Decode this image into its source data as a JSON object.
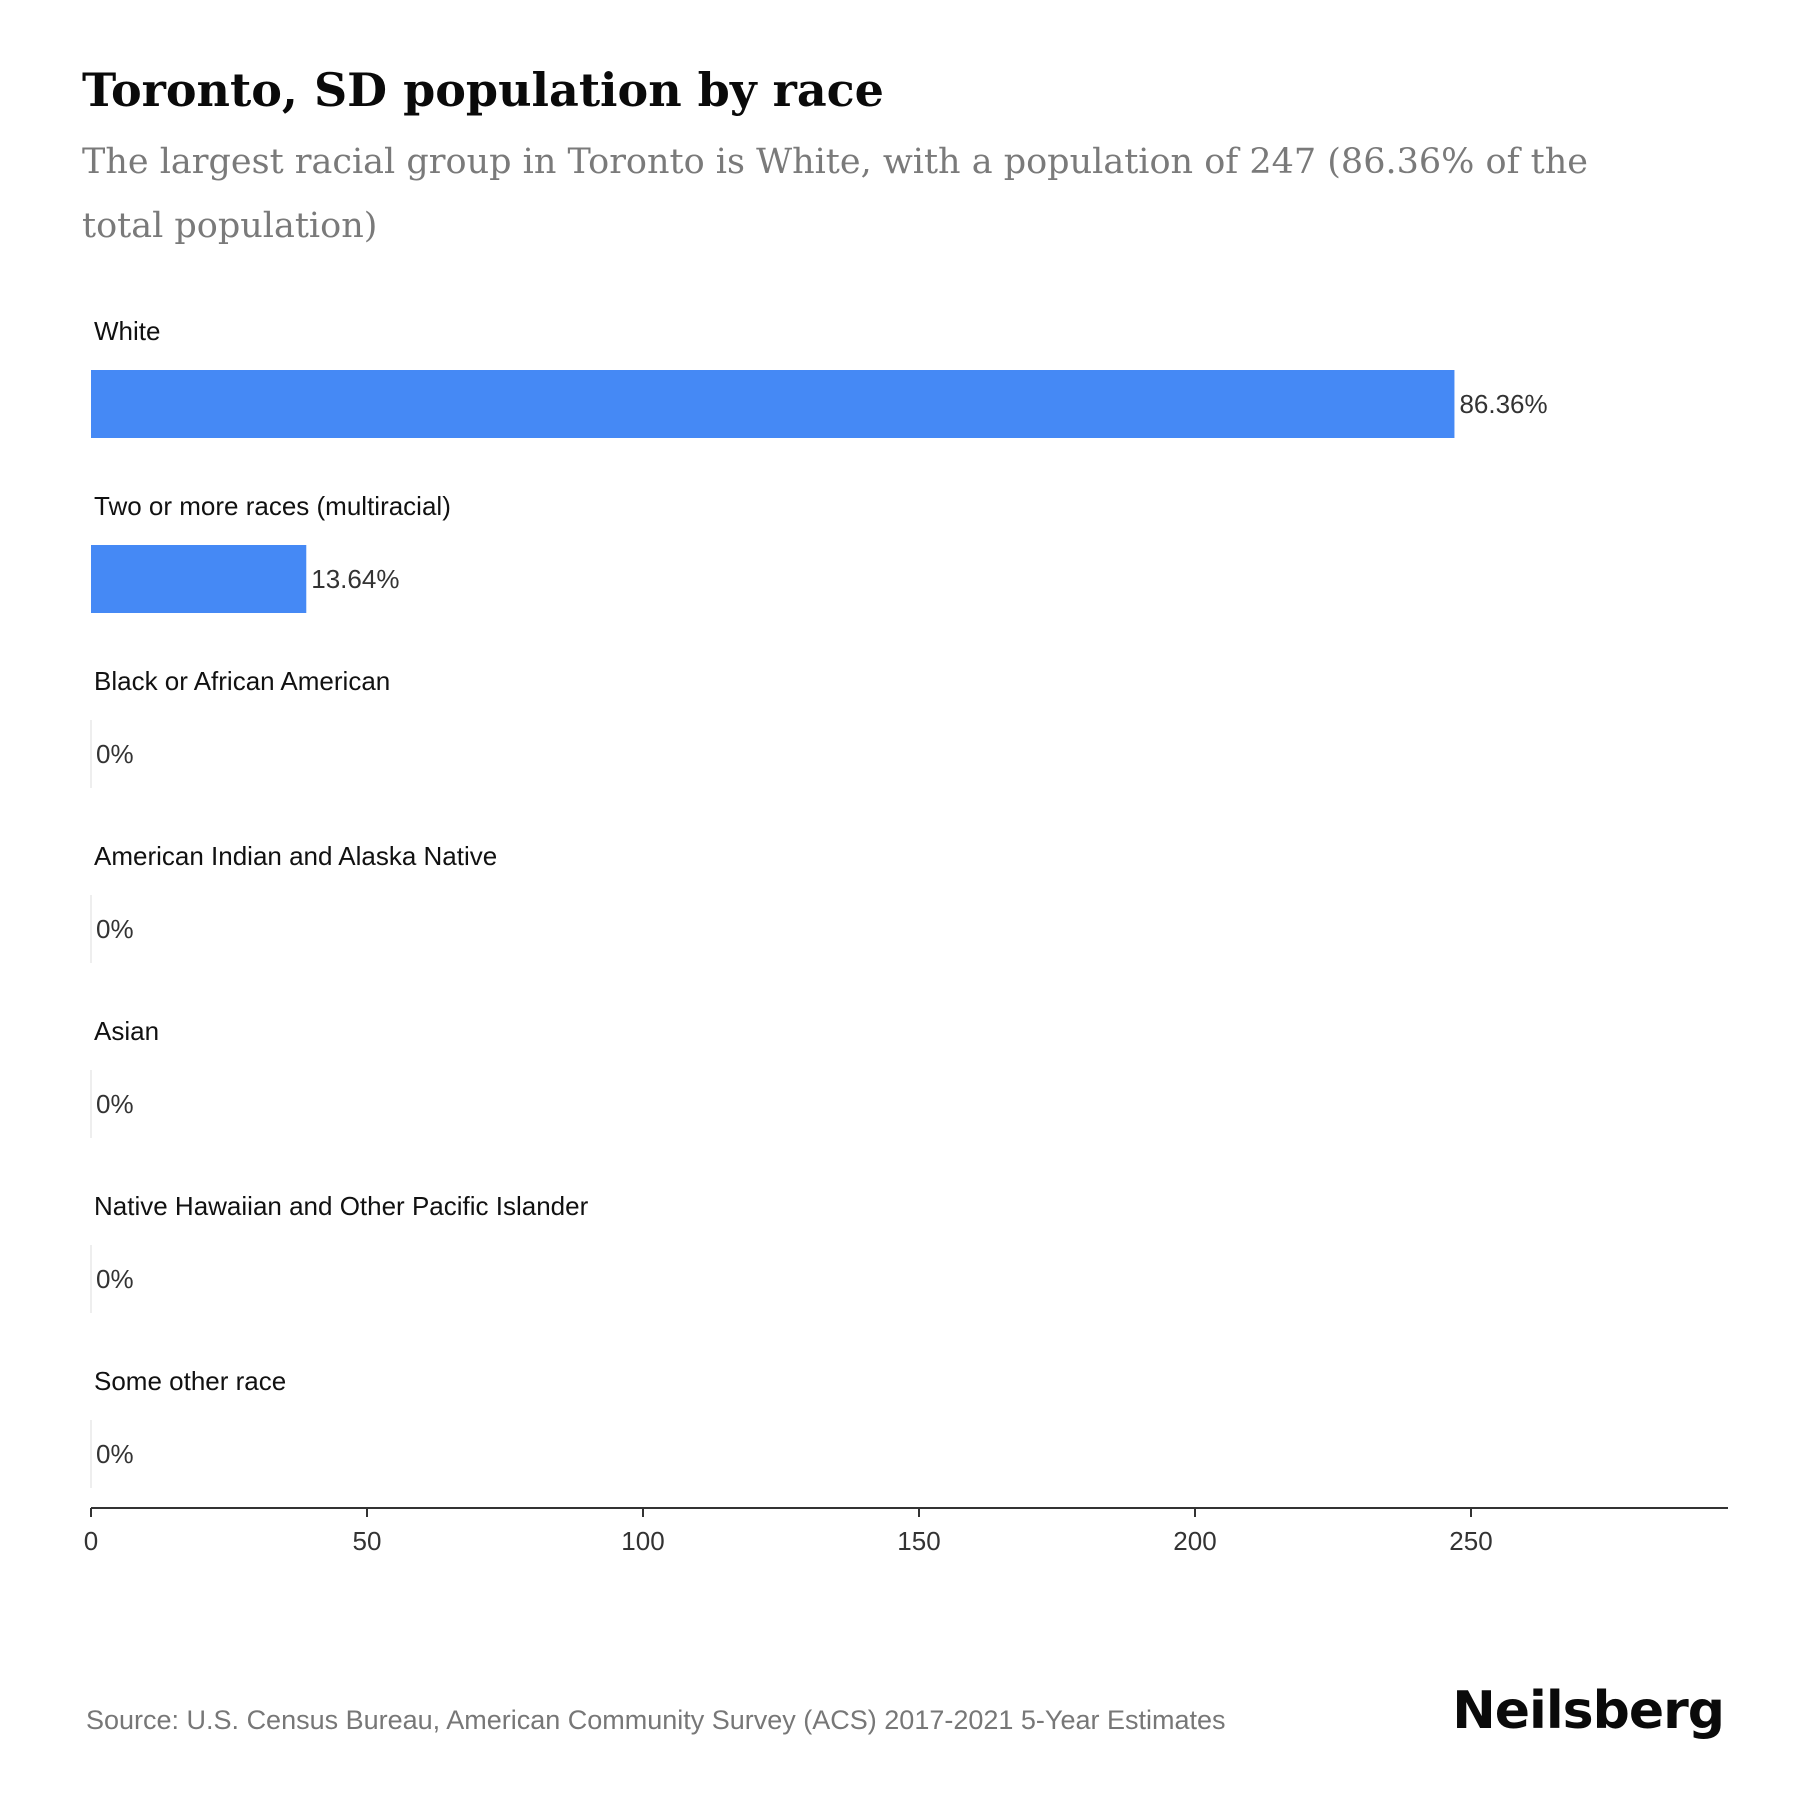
{
  "header": {
    "title": "Toronto, SD population by race",
    "subtitle": "The largest racial group in Toronto is White, with a population of 247 (86.36% of the total population)"
  },
  "chart_data": {
    "type": "bar",
    "orientation": "horizontal",
    "categories": [
      "White",
      "Two or more races (multiracial)",
      "Black or African American",
      "American Indian and Alaska Native",
      "Asian",
      "Native Hawaiian and Other Pacific Islander",
      "Some other race"
    ],
    "values": [
      247,
      39,
      0,
      0,
      0,
      0,
      0
    ],
    "value_labels": [
      "86.36%",
      "13.64%",
      "0%",
      "0%",
      "0%",
      "0%",
      "0%"
    ],
    "xlim": [
      0,
      296
    ],
    "xticks": [
      0,
      50,
      100,
      150,
      200,
      250
    ],
    "xtick_labels": [
      "0",
      "50",
      "100",
      "150",
      "200",
      "250"
    ],
    "grid": false,
    "legend": "none",
    "bar_color": "#4589f5"
  },
  "footer": {
    "source": "Source: U.S. Census Bureau, American Community Survey (ACS) 2017-2021 5-Year Estimates",
    "brand": "Neilsberg"
  }
}
